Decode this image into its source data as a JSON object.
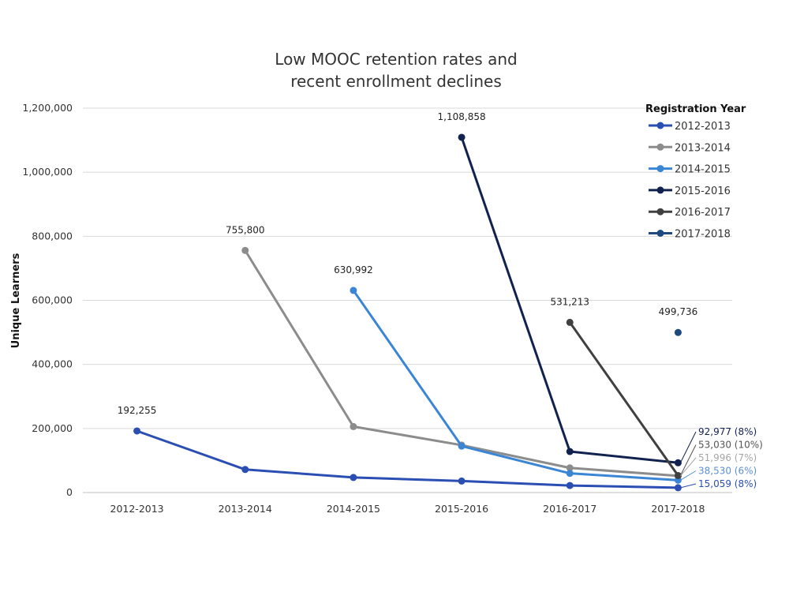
{
  "chart_data": {
    "type": "line",
    "title_lines": [
      "Low MOOC retention rates and",
      "recent enrollment declines"
    ],
    "ylabel": "Unique Learners",
    "xlabel": "",
    "categories": [
      "2012-2013",
      "2013-2014",
      "2014-2015",
      "2015-2016",
      "2016-2017",
      "2017-2018"
    ],
    "ylim": [
      0,
      1200000
    ],
    "yticks": [
      0,
      200000,
      400000,
      600000,
      800000,
      1000000,
      1200000
    ],
    "ytick_labels": [
      "0",
      "200,000",
      "400,000",
      "600,000",
      "800,000",
      "1,000,000",
      "1,200,000"
    ],
    "grid": "horizontal",
    "legend": {
      "title": "Registration Year",
      "placement": "right"
    },
    "series": [
      {
        "name": "2012-2013",
        "color": "#2b4eb3",
        "values": [
          192255,
          72000,
          47000,
          36000,
          22000,
          15059
        ],
        "start_label": "192,255",
        "end_label": "15,059 (8%)",
        "end_label_color": "#2b4eb3"
      },
      {
        "name": "2013-2014",
        "color": "#8c8c8c",
        "values": [
          null,
          755800,
          206000,
          148000,
          77000,
          51996
        ],
        "start_label": "755,800",
        "end_label": "51,996 (7%)",
        "end_label_color": "#a6a6a6"
      },
      {
        "name": "2014-2015",
        "color": "#3a86d4",
        "values": [
          null,
          null,
          630992,
          145000,
          60000,
          38530
        ],
        "start_label": "630,992",
        "end_label": "38,530 (6%)",
        "end_label_color": "#5b8fd8"
      },
      {
        "name": "2015-2016",
        "color": "#12224f",
        "values": [
          null,
          null,
          null,
          1108858,
          128000,
          92977
        ],
        "start_label": "1,108,858",
        "end_label": "92,977 (8%)",
        "end_label_color": "#12224f"
      },
      {
        "name": "2016-2017",
        "color": "#404040",
        "values": [
          null,
          null,
          null,
          null,
          531213,
          53030
        ],
        "start_label": "531,213",
        "end_label": "53,030 (10%)",
        "end_label_color": "#555555"
      },
      {
        "name": "2017-2018",
        "color": "#1e4a80",
        "values": [
          null,
          null,
          null,
          null,
          null,
          499736
        ],
        "start_label": "499,736",
        "end_label": "",
        "end_label_color": "#1e4a80"
      }
    ]
  }
}
